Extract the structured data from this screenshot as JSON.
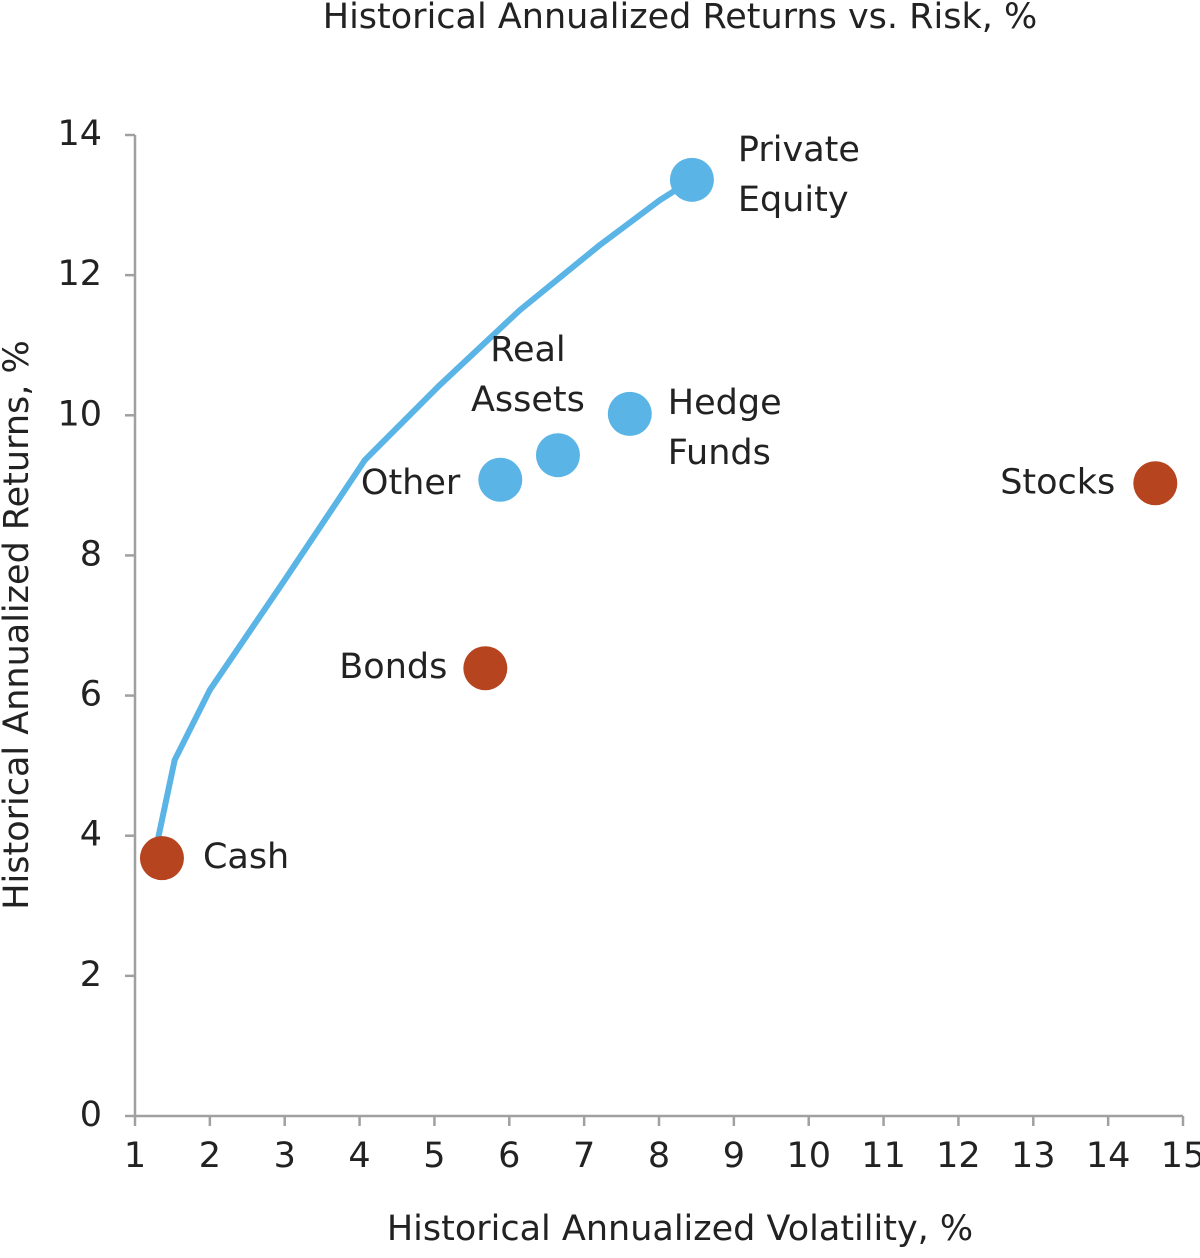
{
  "chart_data": {
    "type": "scatter",
    "title": "Historical Annualized Returns vs. Risk, %",
    "x_label": "Historical Annualized Volatility, %",
    "y_label": "Historical Annualized Returns, %",
    "xlim": [
      1,
      15
    ],
    "xticks": [
      1,
      2,
      3,
      4,
      5,
      6,
      7,
      8,
      9,
      10,
      11,
      12,
      13,
      14,
      15
    ],
    "ylim": [
      0,
      14
    ],
    "yticks": [
      0,
      2,
      4,
      6,
      8,
      10,
      12,
      14
    ],
    "points": [
      {
        "label": [
          "Cash"
        ],
        "x": 1.36,
        "y": 3.68,
        "color": "#b5441f"
      },
      {
        "label": [
          "Bonds"
        ],
        "x": 5.68,
        "y": 6.39,
        "color": "#b5441f"
      },
      {
        "label": [
          "Other"
        ],
        "x": 5.88,
        "y": 9.08,
        "color": "#5ab4e5"
      },
      {
        "label": [
          "Real",
          "Assets"
        ],
        "x": 6.65,
        "y": 9.43,
        "color": "#5ab4e5"
      },
      {
        "label": [
          "Hedge",
          "Funds"
        ],
        "x": 7.61,
        "y": 10.02,
        "color": "#5ab4e5"
      },
      {
        "label": [
          "Private",
          "Equity"
        ],
        "x": 8.44,
        "y": 13.36,
        "color": "#5ab4e5"
      },
      {
        "label": [
          "Stocks"
        ],
        "x": 14.63,
        "y": 9.03,
        "color": "#b5441f"
      }
    ],
    "curve": {
      "color": "#5ab4e5",
      "x": [
        1.31,
        1.53,
        2.0,
        3.0,
        4.07,
        5.07,
        6.14,
        7.21,
        8.01,
        8.44
      ],
      "y": [
        3.97,
        5.08,
        6.08,
        7.65,
        9.36,
        10.43,
        11.5,
        12.43,
        13.07,
        13.36
      ]
    }
  }
}
